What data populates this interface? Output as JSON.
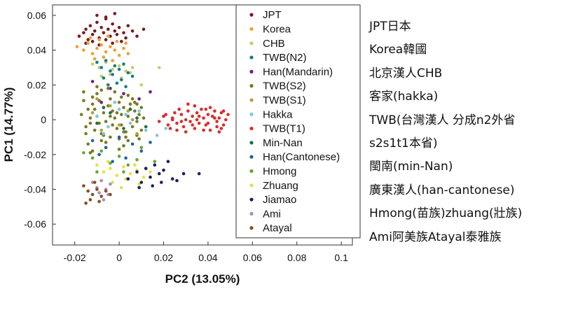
{
  "chart_data": {
    "type": "scatter",
    "xlabel": "PC2 (13.05%)",
    "ylabel": "PC1 (14.77%)",
    "xlim": [
      -0.03,
      0.105
    ],
    "ylim": [
      -0.072,
      0.066
    ],
    "xticks": [
      -0.02,
      0,
      0.02,
      0.04,
      0.06,
      0.08,
      0.1
    ],
    "xtick_labels": [
      "-0.02",
      "0",
      "0.02",
      "0.04",
      "0.06",
      "0.08",
      "0.1"
    ],
    "yticks": [
      -0.06,
      -0.04,
      -0.02,
      0,
      0.02,
      0.04,
      0.06
    ],
    "ytick_labels": [
      "-0.06",
      "-0.04",
      "-0.02",
      "0",
      "0.02",
      "0.04",
      "0.06"
    ],
    "grid": false,
    "legend_position": "top-right",
    "series": [
      {
        "name": "JPT",
        "color": "#7b1a22",
        "x": [
          -0.018,
          -0.016,
          -0.015,
          -0.014,
          -0.013,
          -0.012,
          -0.011,
          -0.01,
          -0.009,
          -0.008,
          -0.007,
          -0.006,
          -0.005,
          -0.004,
          -0.003,
          -0.002,
          -0.001,
          0.0,
          0.002,
          0.004,
          0.006,
          0.008,
          0.011,
          -0.015,
          -0.012,
          -0.009,
          -0.006,
          -0.003,
          0.001,
          0.003,
          -0.01,
          -0.006,
          -0.002
        ],
        "y": [
          0.048,
          0.05,
          0.052,
          0.046,
          0.054,
          0.049,
          0.051,
          0.056,
          0.047,
          0.053,
          0.05,
          0.058,
          0.052,
          0.048,
          0.055,
          0.051,
          0.049,
          0.053,
          0.05,
          0.054,
          0.051,
          0.048,
          0.052,
          0.044,
          0.045,
          0.043,
          0.046,
          0.044,
          0.045,
          0.047,
          0.06,
          0.059,
          0.061
        ]
      },
      {
        "name": "Korea",
        "color": "#f0a030",
        "x": [
          -0.019,
          -0.016,
          -0.014,
          -0.012,
          -0.01,
          -0.008,
          -0.006,
          -0.004,
          -0.002,
          0.0,
          0.002,
          0.004,
          -0.013,
          -0.009,
          -0.005,
          -0.001,
          0.003,
          -0.011,
          -0.007,
          -0.003
        ],
        "y": [
          0.042,
          0.04,
          0.044,
          0.038,
          0.041,
          0.043,
          0.039,
          0.042,
          0.04,
          0.037,
          0.041,
          0.038,
          0.047,
          0.046,
          0.048,
          0.045,
          0.044,
          0.035,
          0.036,
          0.034
        ]
      },
      {
        "name": "CHB",
        "color": "#c8cc6a",
        "x": [
          -0.012,
          -0.009,
          -0.006,
          -0.003,
          0.0,
          0.003,
          0.006,
          -0.008,
          -0.004,
          0.001,
          0.005,
          0.01,
          0.018
        ],
        "y": [
          0.032,
          0.03,
          0.033,
          0.029,
          0.031,
          0.028,
          0.03,
          0.025,
          0.026,
          0.024,
          0.027,
          0.02,
          0.03
        ]
      },
      {
        "name": "TWB(N2)",
        "color": "#117f7f",
        "x": [
          -0.01,
          -0.008,
          -0.006,
          -0.004,
          -0.002,
          0.0,
          0.002,
          0.004,
          -0.007,
          -0.003,
          0.001,
          -0.005,
          -0.001,
          0.003,
          0.006
        ],
        "y": [
          0.033,
          0.03,
          0.034,
          0.028,
          0.031,
          0.029,
          0.032,
          0.027,
          0.024,
          0.026,
          0.023,
          0.02,
          0.021,
          0.019,
          0.025
        ]
      },
      {
        "name": "Han(Mandarin)",
        "color": "#6a1f7e",
        "x": [
          -0.012,
          -0.004,
          0.002,
          0.009,
          -0.008,
          0.014
        ],
        "y": [
          0.022,
          0.018,
          0.015,
          0.012,
          0.01,
          0.016
        ]
      },
      {
        "name": "TWB(S2)",
        "color": "#7a7a22",
        "x": [
          -0.017,
          -0.015,
          -0.014,
          -0.013,
          -0.012,
          -0.011,
          -0.01,
          -0.009,
          -0.008,
          -0.007,
          -0.006,
          -0.005,
          -0.004,
          -0.003,
          -0.002,
          -0.001,
          0.0,
          0.001,
          0.002,
          0.003,
          0.004,
          0.005,
          0.006,
          0.007,
          0.008,
          0.009,
          0.01,
          0.011,
          -0.016,
          -0.012,
          -0.008,
          -0.004,
          0.0,
          0.004,
          0.008,
          -0.014,
          -0.01,
          -0.006,
          -0.002,
          0.002,
          0.006,
          0.01,
          -0.013,
          -0.009,
          -0.005,
          -0.001,
          0.003,
          0.007,
          -0.011,
          -0.007,
          -0.003,
          0.001,
          0.005,
          -0.015,
          -0.008,
          0.0,
          0.008,
          -0.012,
          -0.004,
          0.004,
          -0.016,
          -0.01,
          -0.006,
          0.002,
          0.009,
          -0.013,
          -0.007,
          0.001
        ],
        "y": [
          0.003,
          -0.004,
          0.006,
          -0.002,
          0.009,
          -0.006,
          0.002,
          0.011,
          -0.008,
          0.004,
          -0.001,
          0.008,
          -0.01,
          0.005,
          0.001,
          -0.005,
          0.01,
          -0.003,
          0.007,
          -0.007,
          0.002,
          0.009,
          -0.004,
          0.005,
          -0.001,
          0.003,
          -0.006,
          0.001,
          0.011,
          0.013,
          -0.012,
          0.012,
          -0.011,
          0.014,
          -0.009,
          -0.014,
          0.015,
          -0.013,
          0.016,
          -0.015,
          0.012,
          0.007,
          0.001,
          -0.002,
          0.018,
          0.004,
          -0.01,
          0.01,
          0.006,
          -0.009,
          -0.003,
          0.013,
          0.006,
          -0.008,
          0.017,
          -0.017,
          0.009,
          -0.018,
          0.002,
          -0.012,
          0.016,
          0.019,
          -0.016,
          -0.007,
          -0.011,
          -0.019,
          0.007,
          0.003
        ]
      },
      {
        "name": "TWB(S1)",
        "color": "#b0a040",
        "x": [
          -0.012,
          -0.008,
          -0.004,
          0.0,
          0.004,
          0.008,
          -0.01,
          -0.002,
          0.006
        ],
        "y": [
          0.004,
          -0.006,
          0.008,
          -0.003,
          0.005,
          -0.008,
          0.012,
          0.01,
          0.0
        ]
      },
      {
        "name": "Hakka",
        "color": "#7ec8d8",
        "x": [
          -0.01,
          -0.005,
          0.0,
          0.005,
          -0.007,
          0.003,
          0.009,
          0.012,
          -0.002,
          0.017,
          0.021
        ],
        "y": [
          0.002,
          -0.004,
          0.006,
          -0.002,
          -0.008,
          0.003,
          0.005,
          -0.006,
          0.01,
          -0.009,
          -0.005
        ]
      },
      {
        "name": "TWB(T1)",
        "color": "#dd2a2a",
        "x": [
          0.018,
          0.02,
          0.022,
          0.024,
          0.025,
          0.026,
          0.028,
          0.029,
          0.03,
          0.031,
          0.032,
          0.033,
          0.034,
          0.035,
          0.036,
          0.037,
          0.038,
          0.039,
          0.04,
          0.041,
          0.042,
          0.043,
          0.044,
          0.045,
          0.046,
          0.047,
          0.048,
          0.049,
          0.021,
          0.023,
          0.027,
          0.03,
          0.034,
          0.038,
          0.041,
          0.044,
          0.047,
          0.024,
          0.028,
          0.033,
          0.036,
          0.04,
          0.043,
          0.046,
          0.031,
          0.039,
          0.045,
          0.026,
          0.035
        ],
        "y": [
          -0.001,
          0.002,
          -0.003,
          0.001,
          0.004,
          -0.002,
          0.003,
          -0.004,
          0.0,
          0.005,
          -0.001,
          0.002,
          -0.005,
          0.004,
          -0.002,
          0.006,
          0.001,
          -0.003,
          0.003,
          -0.006,
          0.002,
          0.005,
          -0.001,
          0.001,
          0.004,
          -0.003,
          0.0,
          0.003,
          0.003,
          -0.005,
          0.006,
          -0.007,
          0.008,
          -0.006,
          0.007,
          -0.004,
          0.005,
          0.0,
          -0.001,
          -0.003,
          0.002,
          -0.002,
          0.001,
          -0.005,
          0.009,
          0.006,
          -0.007,
          -0.006,
          0.0
        ]
      },
      {
        "name": "Min-Nan",
        "color": "#1c6e48",
        "x": [
          -0.01,
          -0.004,
          0.002,
          0.008,
          -0.007,
          0.005,
          0.012
        ],
        "y": [
          -0.002,
          0.004,
          -0.005,
          0.001,
          0.007,
          0.006,
          -0.004
        ]
      },
      {
        "name": "Han(Cantonese)",
        "color": "#1e62a8",
        "x": [
          -0.012,
          -0.006,
          0.0,
          0.006,
          -0.009,
          0.003,
          0.01,
          -0.003,
          0.014
        ],
        "y": [
          -0.012,
          -0.016,
          -0.01,
          -0.014,
          -0.02,
          -0.022,
          -0.018,
          -0.024,
          -0.013
        ]
      },
      {
        "name": "Hmong",
        "color": "#64a830",
        "x": [
          -0.016,
          -0.012,
          -0.008,
          -0.004,
          0.0,
          0.004,
          0.008,
          0.012,
          0.016,
          -0.01,
          0.002,
          0.01
        ],
        "y": [
          -0.019,
          -0.022,
          -0.018,
          -0.025,
          -0.021,
          -0.026,
          -0.023,
          -0.028,
          -0.024,
          -0.03,
          -0.03,
          -0.016
        ]
      },
      {
        "name": "Zhuang",
        "color": "#e8e040",
        "x": [
          -0.01,
          -0.007,
          -0.004,
          -0.001,
          0.002,
          0.005,
          0.008,
          0.011,
          -0.008,
          -0.003,
          0.003,
          0.009,
          -0.005,
          0.001,
          0.007,
          0.014
        ],
        "y": [
          -0.026,
          -0.03,
          -0.028,
          -0.032,
          -0.027,
          -0.031,
          -0.029,
          -0.033,
          -0.035,
          -0.036,
          -0.034,
          -0.037,
          -0.024,
          -0.039,
          -0.026,
          -0.03
        ]
      },
      {
        "name": "Jiamao",
        "color": "#1a2060",
        "x": [
          0.004,
          0.008,
          0.01,
          0.012,
          0.014,
          0.016,
          0.018,
          0.02,
          0.022,
          0.024,
          0.026,
          0.019,
          0.029,
          0.036,
          0.009,
          0.015
        ],
        "y": [
          -0.034,
          -0.03,
          -0.036,
          -0.028,
          -0.033,
          -0.026,
          -0.031,
          -0.029,
          -0.024,
          -0.034,
          -0.035,
          -0.036,
          -0.031,
          -0.031,
          -0.039,
          -0.038
        ]
      },
      {
        "name": "Ami",
        "color": "#a88cc0",
        "x": [
          -0.012,
          -0.01,
          -0.008,
          -0.006,
          -0.004,
          -0.009,
          -0.005,
          -0.007
        ],
        "y": [
          -0.036,
          -0.039,
          -0.035,
          -0.04,
          -0.037,
          -0.042,
          -0.043,
          -0.046
        ]
      },
      {
        "name": "Atayal",
        "color": "#8a4a1a",
        "x": [
          -0.016,
          -0.014,
          -0.012,
          -0.01,
          -0.008,
          -0.006,
          -0.013,
          -0.009,
          -0.004,
          -0.015,
          -0.011
        ],
        "y": [
          -0.038,
          -0.041,
          -0.043,
          -0.04,
          -0.044,
          -0.041,
          -0.046,
          -0.047,
          -0.043,
          -0.048,
          -0.036
        ]
      }
    ]
  },
  "annotations": [
    "JPT日本",
    "Korea韓國",
    "北京漢人CHB",
    "客家(hakka)",
    "TWB(台灣漢人 分成n2外省",
    "s2s1t1本省)",
    "閩南(min-Nan)",
    "廣東漢人(han-cantonese)",
    "Hmong(苗族)zhuang(壯族)",
    "Ami阿美族Atayal泰雅族"
  ]
}
